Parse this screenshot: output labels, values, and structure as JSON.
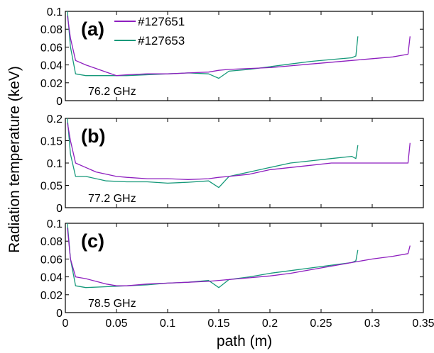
{
  "chart_data": {
    "type": "line",
    "xlabel": "path (m)",
    "ylabel": "Radiation temperature (keV)",
    "xlim": [
      0,
      0.35
    ],
    "xticks": [
      "0",
      "0.05",
      "0.1",
      "0.15",
      "0.2",
      "0.25",
      "0.3",
      "0.35"
    ],
    "colors": {
      "s127651": "#8e1fbf",
      "s127653": "#16997a"
    },
    "legend": [
      {
        "name": "#127651",
        "color": "#8e1fbf"
      },
      {
        "name": "#127653",
        "color": "#16997a"
      }
    ],
    "legend_position": "top-left",
    "panels": [
      {
        "label": "(a)",
        "frequency": "76.2 GHz",
        "ylim": [
          0,
          0.1
        ],
        "yticks": [
          "0",
          "0.02",
          "0.04",
          "0.06",
          "0.08",
          "0.1"
        ],
        "series": [
          {
            "name": "#127651",
            "x": [
              0.002,
              0.005,
              0.01,
              0.02,
              0.03,
              0.04,
              0.05,
              0.06,
              0.08,
              0.1,
              0.12,
              0.14,
              0.15,
              0.16,
              0.18,
              0.2,
              0.22,
              0.24,
              0.26,
              0.28,
              0.3,
              0.32,
              0.335,
              0.337
            ],
            "y": [
              0.095,
              0.07,
              0.045,
              0.04,
              0.036,
              0.032,
              0.028,
              0.029,
              0.03,
              0.03,
              0.031,
              0.032,
              0.034,
              0.035,
              0.036,
              0.037,
              0.039,
              0.041,
              0.043,
              0.045,
              0.047,
              0.049,
              0.052,
              0.072
            ]
          },
          {
            "name": "#127653",
            "x": [
              0.002,
              0.005,
              0.01,
              0.02,
              0.04,
              0.06,
              0.08,
              0.1,
              0.12,
              0.14,
              0.15,
              0.16,
              0.18,
              0.2,
              0.22,
              0.24,
              0.26,
              0.28,
              0.284,
              0.286
            ],
            "y": [
              0.1,
              0.06,
              0.03,
              0.028,
              0.028,
              0.028,
              0.029,
              0.03,
              0.031,
              0.03,
              0.025,
              0.033,
              0.035,
              0.038,
              0.041,
              0.044,
              0.046,
              0.048,
              0.05,
              0.072
            ]
          }
        ]
      },
      {
        "label": "(b)",
        "frequency": "77.2 GHz",
        "ylim": [
          0,
          0.2
        ],
        "yticks": [
          "0",
          "0.05",
          "0.1",
          "0.15",
          "0.2"
        ],
        "series": [
          {
            "name": "#127651",
            "x": [
              0.002,
              0.005,
              0.01,
              0.02,
              0.03,
              0.04,
              0.05,
              0.06,
              0.08,
              0.1,
              0.12,
              0.14,
              0.15,
              0.16,
              0.18,
              0.2,
              0.22,
              0.24,
              0.26,
              0.28,
              0.3,
              0.32,
              0.335,
              0.337
            ],
            "y": [
              0.19,
              0.15,
              0.1,
              0.09,
              0.08,
              0.075,
              0.07,
              0.068,
              0.065,
              0.065,
              0.063,
              0.065,
              0.068,
              0.07,
              0.075,
              0.085,
              0.09,
              0.095,
              0.1,
              0.1,
              0.1,
              0.1,
              0.1,
              0.145
            ]
          },
          {
            "name": "#127653",
            "x": [
              0.002,
              0.005,
              0.01,
              0.02,
              0.04,
              0.06,
              0.08,
              0.1,
              0.12,
              0.14,
              0.15,
              0.16,
              0.18,
              0.2,
              0.22,
              0.24,
              0.26,
              0.28,
              0.284,
              0.286
            ],
            "y": [
              0.2,
              0.12,
              0.07,
              0.07,
              0.06,
              0.058,
              0.058,
              0.055,
              0.057,
              0.06,
              0.045,
              0.07,
              0.08,
              0.09,
              0.1,
              0.105,
              0.11,
              0.115,
              0.11,
              0.14
            ]
          }
        ]
      },
      {
        "label": "(c)",
        "frequency": "78.5 GHz",
        "ylim": [
          0,
          0.1
        ],
        "yticks": [
          "0",
          "0.02",
          "0.04",
          "0.06",
          "0.08",
          "0.1"
        ],
        "series": [
          {
            "name": "#127651",
            "x": [
              0.002,
              0.005,
              0.01,
              0.02,
              0.03,
              0.04,
              0.05,
              0.06,
              0.08,
              0.1,
              0.12,
              0.14,
              0.15,
              0.16,
              0.18,
              0.2,
              0.22,
              0.24,
              0.26,
              0.28,
              0.3,
              0.32,
              0.335,
              0.337
            ],
            "y": [
              0.095,
              0.06,
              0.04,
              0.038,
              0.035,
              0.032,
              0.03,
              0.03,
              0.032,
              0.033,
              0.034,
              0.035,
              0.036,
              0.037,
              0.039,
              0.041,
              0.044,
              0.048,
              0.052,
              0.056,
              0.06,
              0.063,
              0.066,
              0.075
            ]
          },
          {
            "name": "#127653",
            "x": [
              0.002,
              0.005,
              0.01,
              0.02,
              0.04,
              0.06,
              0.08,
              0.1,
              0.12,
              0.14,
              0.15,
              0.16,
              0.18,
              0.2,
              0.22,
              0.24,
              0.26,
              0.28,
              0.284,
              0.286
            ],
            "y": [
              0.1,
              0.06,
              0.03,
              0.028,
              0.029,
              0.03,
              0.031,
              0.033,
              0.034,
              0.036,
              0.028,
              0.037,
              0.04,
              0.044,
              0.047,
              0.05,
              0.053,
              0.056,
              0.058,
              0.07
            ]
          }
        ]
      }
    ]
  }
}
